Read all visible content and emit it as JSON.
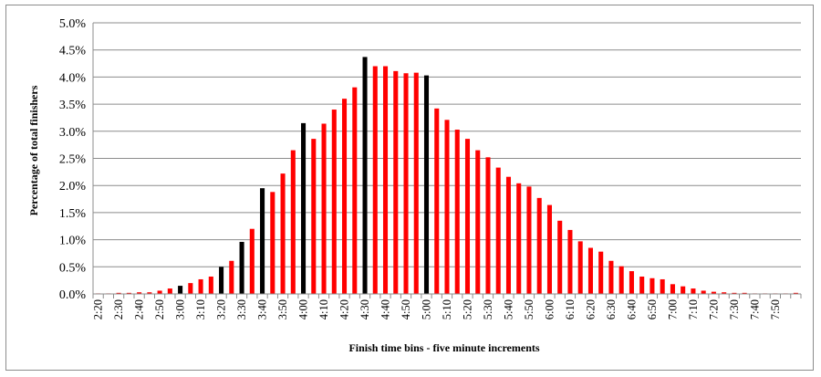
{
  "chart_data": {
    "type": "bar",
    "xlabel": "Finish time bins - five minute increments",
    "ylabel": "Percentage of total finishers",
    "ylim": [
      0,
      5.0
    ],
    "y_ticks": [
      "0.0%",
      "0.5%",
      "1.0%",
      "1.5%",
      "2.0%",
      "2.5%",
      "3.0%",
      "3.5%",
      "4.0%",
      "4.5%",
      "5.0%"
    ],
    "grid": true,
    "legend": "none",
    "bar_colors": {
      "default": "#ff0000",
      "highlight": "#000000"
    },
    "highlighted_categories": [
      "3:00",
      "3:20",
      "3:30",
      "3:40",
      "4:00",
      "4:30",
      "5:00"
    ],
    "categories": [
      "2:20",
      "2:25",
      "2:30",
      "2:35",
      "2:40",
      "2:45",
      "2:50",
      "2:55",
      "3:00",
      "3:05",
      "3:10",
      "3:15",
      "3:20",
      "3:25",
      "3:30",
      "3:35",
      "3:40",
      "3:45",
      "3:50",
      "3:55",
      "4:00",
      "4:05",
      "4:10",
      "4:15",
      "4:20",
      "4:25",
      "4:30",
      "4:35",
      "4:40",
      "4:45",
      "4:50",
      "4:55",
      "5:00",
      "5:05",
      "5:10",
      "5:15",
      "5:20",
      "5:25",
      "5:30",
      "5:35",
      "5:40",
      "5:45",
      "5:50",
      "5:55",
      "6:00",
      "6:05",
      "6:10",
      "6:15",
      "6:20",
      "6:25",
      "6:30",
      "6:35",
      "6:40",
      "6:45",
      "6:50",
      "6:55",
      "7:00",
      "7:05",
      "7:10",
      "7:15",
      "7:20",
      "7:25",
      "7:30",
      "7:35",
      "7:40",
      "7:45",
      "7:50",
      "7:55",
      "8:00"
    ],
    "tick_labels": [
      "2:20",
      "",
      "2:30",
      "",
      "2:40",
      "",
      "2:50",
      "",
      "3:00",
      "",
      "3:10",
      "",
      "3:20",
      "",
      "3:30",
      "",
      "3:40",
      "",
      "3:50",
      "",
      "4:00",
      "",
      "4:10",
      "",
      "4:20",
      "",
      "4:30",
      "",
      "4:40",
      "",
      "4:50",
      "",
      "5:00",
      "",
      "5:10",
      "",
      "5:20",
      "",
      "5:30",
      "",
      "5:40",
      "",
      "5:50",
      "",
      "6:00",
      "",
      "6:10",
      "",
      "6:20",
      "",
      "6:30",
      "",
      "6:40",
      "",
      "6:50",
      "",
      "7:00",
      "",
      "7:10",
      "",
      "7:20",
      "",
      "7:30",
      "",
      "7:40",
      "",
      "7:50",
      "",
      ""
    ],
    "values": [
      0.01,
      0.01,
      0.02,
      0.02,
      0.03,
      0.03,
      0.06,
      0.1,
      0.15,
      0.2,
      0.27,
      0.32,
      0.5,
      0.61,
      0.96,
      1.2,
      1.95,
      1.88,
      2.22,
      2.65,
      3.15,
      2.86,
      3.14,
      3.4,
      3.6,
      3.81,
      4.37,
      4.2,
      4.2,
      4.11,
      4.07,
      4.08,
      4.03,
      3.42,
      3.21,
      3.03,
      2.86,
      2.65,
      2.52,
      2.33,
      2.16,
      2.04,
      1.98,
      1.77,
      1.64,
      1.35,
      1.18,
      0.97,
      0.85,
      0.78,
      0.61,
      0.51,
      0.42,
      0.32,
      0.29,
      0.27,
      0.18,
      0.14,
      0.1,
      0.06,
      0.04,
      0.03,
      0.02,
      0.02,
      0.01,
      0.01,
      0.01,
      0.01,
      0.02
    ]
  }
}
